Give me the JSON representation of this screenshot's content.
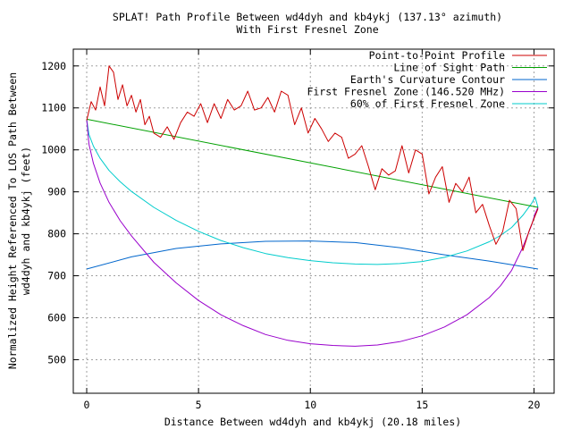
{
  "chart_data": {
    "type": "line",
    "title": "SPLAT! Path Profile Between wd4dyh and kb4ykj (137.13° azimuth)",
    "subtitle": "With First Fresnel Zone",
    "xlabel": "Distance Between wd4dyh and kb4ykj (20.18 miles)",
    "ylabel": "Normalized Height Referenced To LOS Path Between",
    "ylabel2": "wd4dyh and kb4ykj (feet)",
    "xlim": [
      -0.6,
      20.9
    ],
    "ylim": [
      420,
      1240
    ],
    "x_ticks": [
      0,
      5,
      10,
      15,
      20
    ],
    "y_ticks": [
      500,
      600,
      700,
      800,
      900,
      1000,
      1100,
      1200
    ],
    "x_tick_labels": [
      "0",
      "5",
      "10",
      "15",
      "20"
    ],
    "y_tick_labels": [
      "500",
      "600",
      "700",
      "800",
      "900",
      "1000",
      "1100",
      "1200"
    ],
    "grid": true,
    "legend_position": "top-right",
    "series": [
      {
        "name": "Point-to-Point Profile",
        "color": "#cc0000",
        "x": [
          0,
          0.2,
          0.4,
          0.6,
          0.8,
          1.0,
          1.2,
          1.4,
          1.6,
          1.8,
          2.0,
          2.2,
          2.4,
          2.6,
          2.8,
          3.0,
          3.3,
          3.6,
          3.9,
          4.2,
          4.5,
          4.8,
          5.1,
          5.4,
          5.7,
          6.0,
          6.3,
          6.6,
          6.9,
          7.2,
          7.5,
          7.8,
          8.1,
          8.4,
          8.7,
          9.0,
          9.3,
          9.6,
          9.9,
          10.2,
          10.5,
          10.8,
          11.1,
          11.4,
          11.7,
          12.0,
          12.3,
          12.6,
          12.9,
          13.2,
          13.5,
          13.8,
          14.1,
          14.4,
          14.7,
          15.0,
          15.3,
          15.6,
          15.9,
          16.2,
          16.5,
          16.8,
          17.1,
          17.4,
          17.7,
          18.0,
          18.3,
          18.6,
          18.9,
          19.2,
          19.5,
          19.8,
          20.18
        ],
        "values": [
          1070,
          1115,
          1095,
          1150,
          1105,
          1200,
          1185,
          1120,
          1155,
          1105,
          1130,
          1090,
          1120,
          1060,
          1080,
          1040,
          1030,
          1055,
          1025,
          1065,
          1090,
          1080,
          1110,
          1065,
          1110,
          1075,
          1120,
          1095,
          1105,
          1140,
          1095,
          1100,
          1125,
          1090,
          1140,
          1130,
          1060,
          1100,
          1040,
          1075,
          1050,
          1020,
          1040,
          1030,
          980,
          990,
          1010,
          960,
          905,
          955,
          940,
          950,
          1010,
          945,
          1000,
          990,
          895,
          935,
          960,
          875,
          920,
          900,
          935,
          850,
          870,
          820,
          775,
          805,
          880,
          860,
          760,
          810,
          860
        ]
      },
      {
        "name": "Line of Sight Path",
        "color": "#00a000",
        "x": [
          0,
          20.18
        ],
        "values": [
          1073,
          863
        ]
      },
      {
        "name": "Earth's Curvature Contour",
        "color": "#0066cc",
        "x": [
          0,
          2,
          4,
          6,
          8,
          10,
          12,
          14,
          16,
          18,
          20.18
        ],
        "values": [
          716,
          745,
          765,
          776,
          782,
          783,
          779,
          767,
          750,
          735,
          716
        ]
      },
      {
        "name": "First Fresnel Zone (146.520 MHz)",
        "color": "#9900cc",
        "x": [
          0,
          0.1,
          0.3,
          0.6,
          1,
          1.5,
          2,
          3,
          4,
          5,
          6,
          7,
          8,
          9,
          10,
          11,
          12,
          13,
          14,
          15,
          16,
          17,
          18,
          18.5,
          19,
          19.5,
          19.9,
          20.05,
          20.18
        ],
        "values": [
          1073,
          1014,
          968,
          921,
          875,
          831,
          795,
          732,
          683,
          641,
          607,
          581,
          560,
          546,
          538,
          534,
          532,
          535,
          543,
          557,
          578,
          607,
          648,
          676,
          713,
          768,
          822,
          848,
          863
        ]
      },
      {
        "name": "60% of First Fresnel Zone",
        "color": "#00cccc",
        "x": [
          0,
          0.1,
          0.3,
          0.6,
          1,
          1.5,
          2,
          3,
          4,
          5,
          6,
          7,
          8,
          9,
          10,
          11,
          12,
          13,
          14,
          15,
          16,
          17,
          18,
          18.5,
          19,
          19.5,
          19.9,
          20.05,
          20.18
        ],
        "values": [
          1073,
          1037,
          1009,
          980,
          951,
          924,
          901,
          863,
          832,
          806,
          784,
          767,
          753,
          743,
          736,
          731,
          728,
          727,
          729,
          734,
          744,
          759,
          781,
          796,
          815,
          844,
          873,
          887,
          863
        ]
      }
    ]
  }
}
